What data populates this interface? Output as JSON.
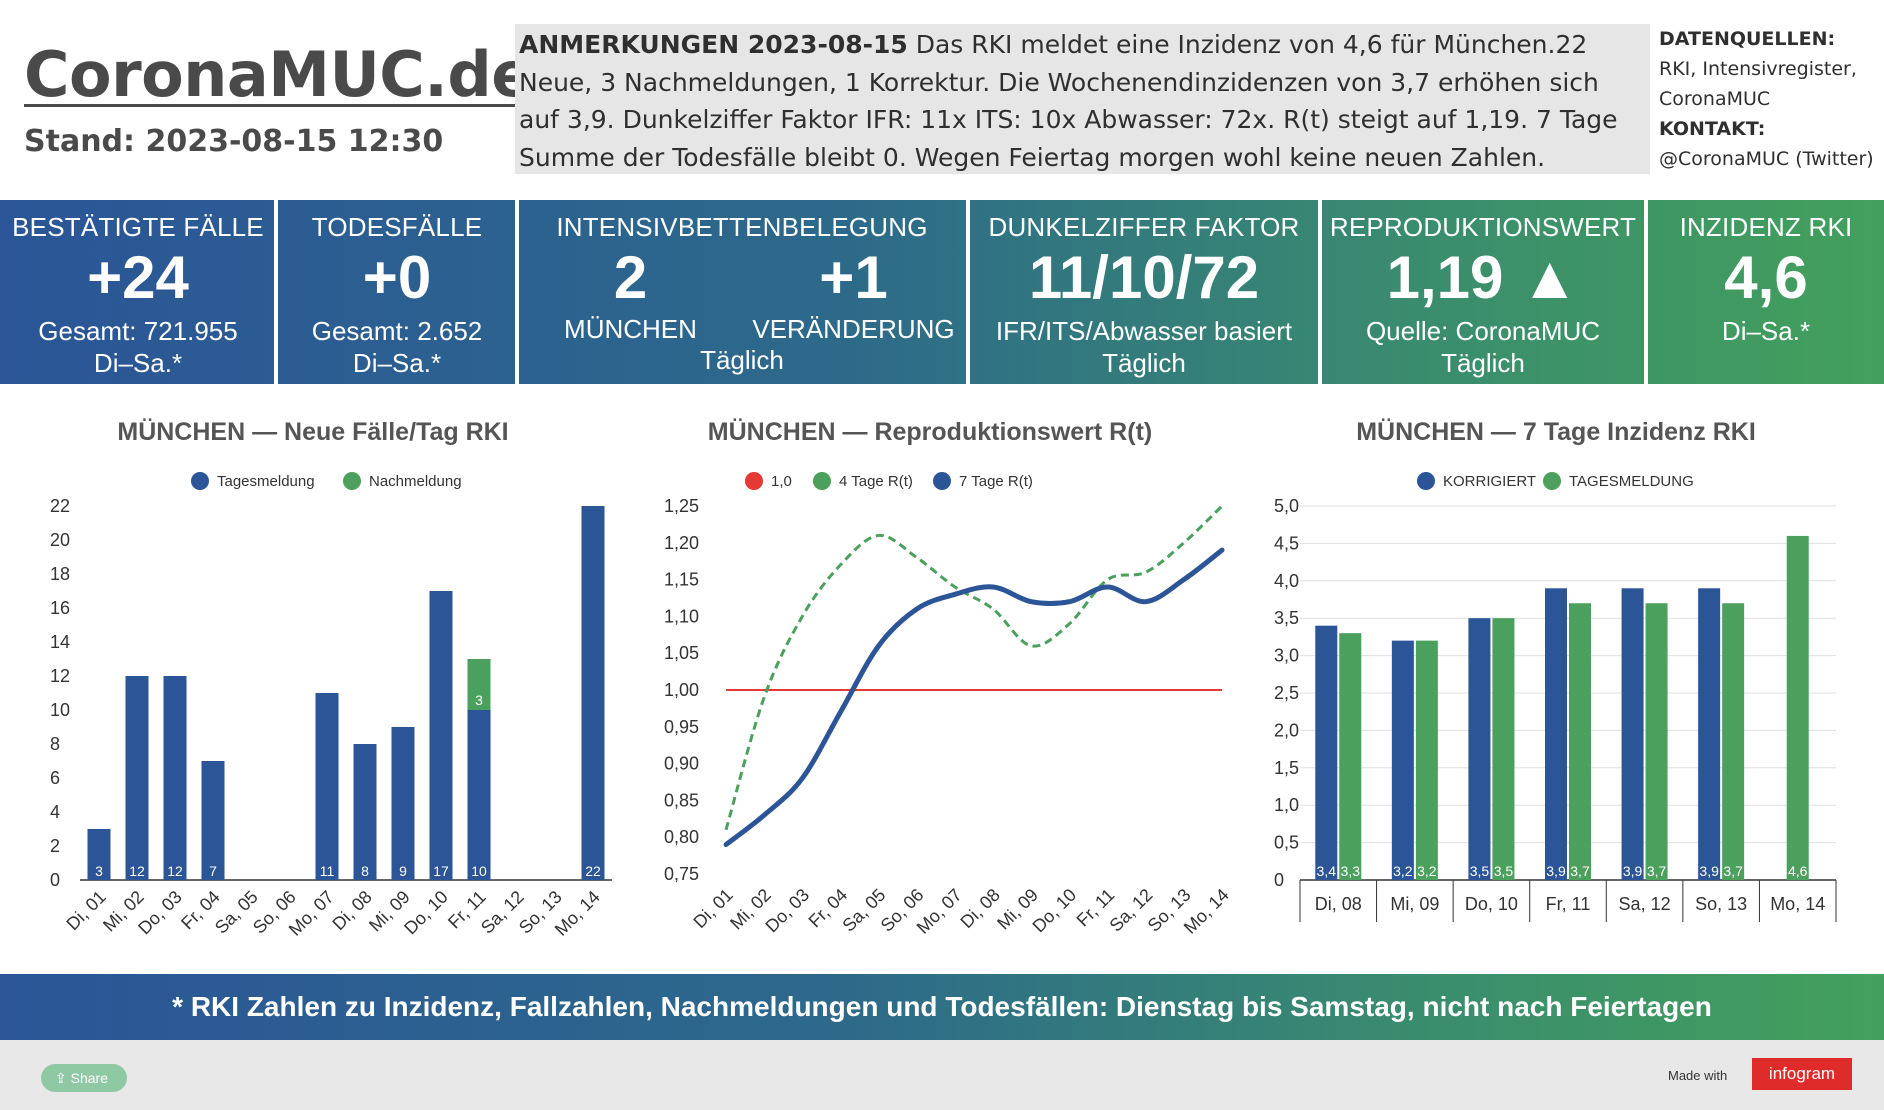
{
  "header": {
    "logo": "CoronaMUC.de",
    "stand": "Stand: 2023-08-15 12:30",
    "notes_title": "ANMERKUNGEN 2023-08-15",
    "notes_text": "Das RKI meldet eine Inzidenz von 4,6 für München.22 Neue, 3 Nachmeldungen, 1 Korrektur. Die Wochenendinzidenzen von 3,7 erhöhen sich auf 3,9. Dunkelziffer Faktor IFR: 11x ITS: 10x Abwasser: 72x. R(t) steigt auf 1,19. 7 Tage Summe der Todesfälle bleibt 0. Wegen Feiertag morgen wohl keine neuen Zahlen.",
    "sources_label": "DATENQUELLEN:",
    "sources_line1": "RKI, Intensivregister,",
    "sources_line2": "CoronaMUC",
    "contact_label": "KONTAKT:",
    "contact_text": "@CoronaMUC (Twitter)"
  },
  "kpis": {
    "cases": {
      "title": "BESTÄTIGTE FÄLLE",
      "value": "+24",
      "sub1": "Gesamt: 721.955",
      "sub2": "Di–Sa.*"
    },
    "deaths": {
      "title": "TODESFÄLLE",
      "value": "+0",
      "sub1": "Gesamt: 2.652",
      "sub2": "Di–Sa.*"
    },
    "icu": {
      "title": "INTENSIVBETTENBELEGUNG",
      "value_left": "2",
      "value_right": "+1",
      "label_left": "MÜNCHEN",
      "label_right": "VERÄNDERUNG",
      "sub2": "Täglich"
    },
    "dark": {
      "title": "DUNKELZIFFER FAKTOR",
      "value": "11/10/72",
      "sub1": "IFR/ITS/Abwasser basiert",
      "sub2": "Täglich"
    },
    "rt": {
      "title": "REPRODUKTIONSWERT",
      "value": "1,19 ▲",
      "sub1": "Quelle: CoronaMUC",
      "sub2": "Täglich"
    },
    "incidence": {
      "title": "INZIDENZ RKI",
      "value": "4,6",
      "sub1": "Di–Sa.*"
    }
  },
  "colors": {
    "blue": "#2b5597",
    "green": "#4aa05c",
    "red": "#e53935",
    "grid": "#e0e0e0"
  },
  "chart_data": [
    {
      "type": "bar",
      "title": "MÜNCHEN — Neue Fälle/Tag RKI",
      "categories": [
        "Di, 01",
        "Mi, 02",
        "Do, 03",
        "Fr, 04",
        "Sa, 05",
        "So, 06",
        "Mo, 07",
        "Di, 08",
        "Mi, 09",
        "Do, 10",
        "Fr, 11",
        "Sa, 12",
        "So, 13",
        "Mo, 14"
      ],
      "series": [
        {
          "name": "Tagesmeldung",
          "color": "#2b5597",
          "values": [
            3,
            12,
            12,
            7,
            0,
            0,
            11,
            8,
            9,
            17,
            10,
            0,
            0,
            22
          ]
        },
        {
          "name": "Nachmeldung",
          "color": "#4aa05c",
          "values": [
            0,
            0,
            0,
            0,
            0,
            0,
            0,
            0,
            0,
            0,
            3,
            0,
            0,
            0
          ]
        }
      ],
      "labels_blue": [
        "3",
        "12",
        "12",
        "7",
        "",
        "",
        "11",
        "8",
        "9",
        "17",
        "10",
        "",
        "",
        "22"
      ],
      "labels_green": [
        "",
        "",
        "",
        "",
        "",
        "",
        "",
        "",
        "",
        "",
        "3",
        "",
        "",
        ""
      ],
      "yticks": [
        "0",
        "2",
        "4",
        "6",
        "8",
        "10",
        "12",
        "14",
        "16",
        "18",
        "20",
        "22"
      ],
      "ylim": [
        0,
        22
      ],
      "stacked": true,
      "grid": false
    },
    {
      "type": "line",
      "title": "MÜNCHEN — Reproduktionswert R(t)",
      "categories": [
        "Di, 01",
        "Mi, 02",
        "Do, 03",
        "Fr, 04",
        "Sa, 05",
        "So, 06",
        "Mo, 07",
        "Di, 08",
        "Mi, 09",
        "Do, 10",
        "Fr, 11",
        "Sa, 12",
        "So, 13",
        "Mo, 14"
      ],
      "series": [
        {
          "name": "1,0",
          "color": "#e53935",
          "values": [
            1.0,
            1.0,
            1.0,
            1.0,
            1.0,
            1.0,
            1.0,
            1.0,
            1.0,
            1.0,
            1.0,
            1.0,
            1.0,
            1.0
          ]
        },
        {
          "name": "4 Tage R(t)",
          "color": "#4aa05c",
          "values": [
            0.81,
            0.99,
            1.1,
            1.17,
            1.21,
            1.18,
            1.14,
            1.11,
            1.06,
            1.09,
            1.15,
            1.16,
            1.2,
            1.25
          ]
        },
        {
          "name": "7 Tage R(t)",
          "color": "#2b5597",
          "values": [
            0.79,
            0.83,
            0.88,
            0.97,
            1.06,
            1.11,
            1.13,
            1.14,
            1.12,
            1.12,
            1.14,
            1.12,
            1.15,
            1.19
          ]
        }
      ],
      "yticks": [
        "0,75",
        "0,80",
        "0,85",
        "0,90",
        "0,95",
        "1,00",
        "1,05",
        "1,10",
        "1,15",
        "1,20",
        "1,25"
      ],
      "ylim": [
        0.75,
        1.25
      ],
      "grid": false
    },
    {
      "type": "bar",
      "title": "MÜNCHEN — 7 Tage Inzidenz RKI",
      "categories": [
        "Di, 08",
        "Mi, 09",
        "Do, 10",
        "Fr, 11",
        "Sa, 12",
        "So, 13",
        "Mo, 14"
      ],
      "series": [
        {
          "name": "KORRIGIERT",
          "color": "#2b5597",
          "values": [
            3.4,
            3.2,
            3.5,
            3.9,
            3.9,
            3.9,
            null
          ]
        },
        {
          "name": "TAGESMELDUNG",
          "color": "#4aa05c",
          "values": [
            3.3,
            3.2,
            3.5,
            3.7,
            3.7,
            3.7,
            4.6
          ]
        }
      ],
      "labels_blue": [
        "3,4",
        "3,2",
        "3,5",
        "3,9",
        "3,9",
        "3,9",
        ""
      ],
      "labels_green": [
        "3,3",
        "3,2",
        "3,5",
        "3,7",
        "3,7",
        "3,7",
        "4,6"
      ],
      "yticks": [
        "0",
        "0,5",
        "1,0",
        "1,5",
        "2,0",
        "2,5",
        "3,0",
        "3,5",
        "4,0",
        "4,5",
        "5,0"
      ],
      "ylim": [
        0,
        5
      ],
      "grid": true
    }
  ],
  "footer": {
    "text": "* RKI Zahlen zu Inzidenz, Fallzahlen, Nachmeldungen und Todesfällen: Dienstag bis Samstag, nicht nach Feiertagen",
    "share": "Share",
    "made_with": "Made with",
    "brand": "infogram"
  }
}
